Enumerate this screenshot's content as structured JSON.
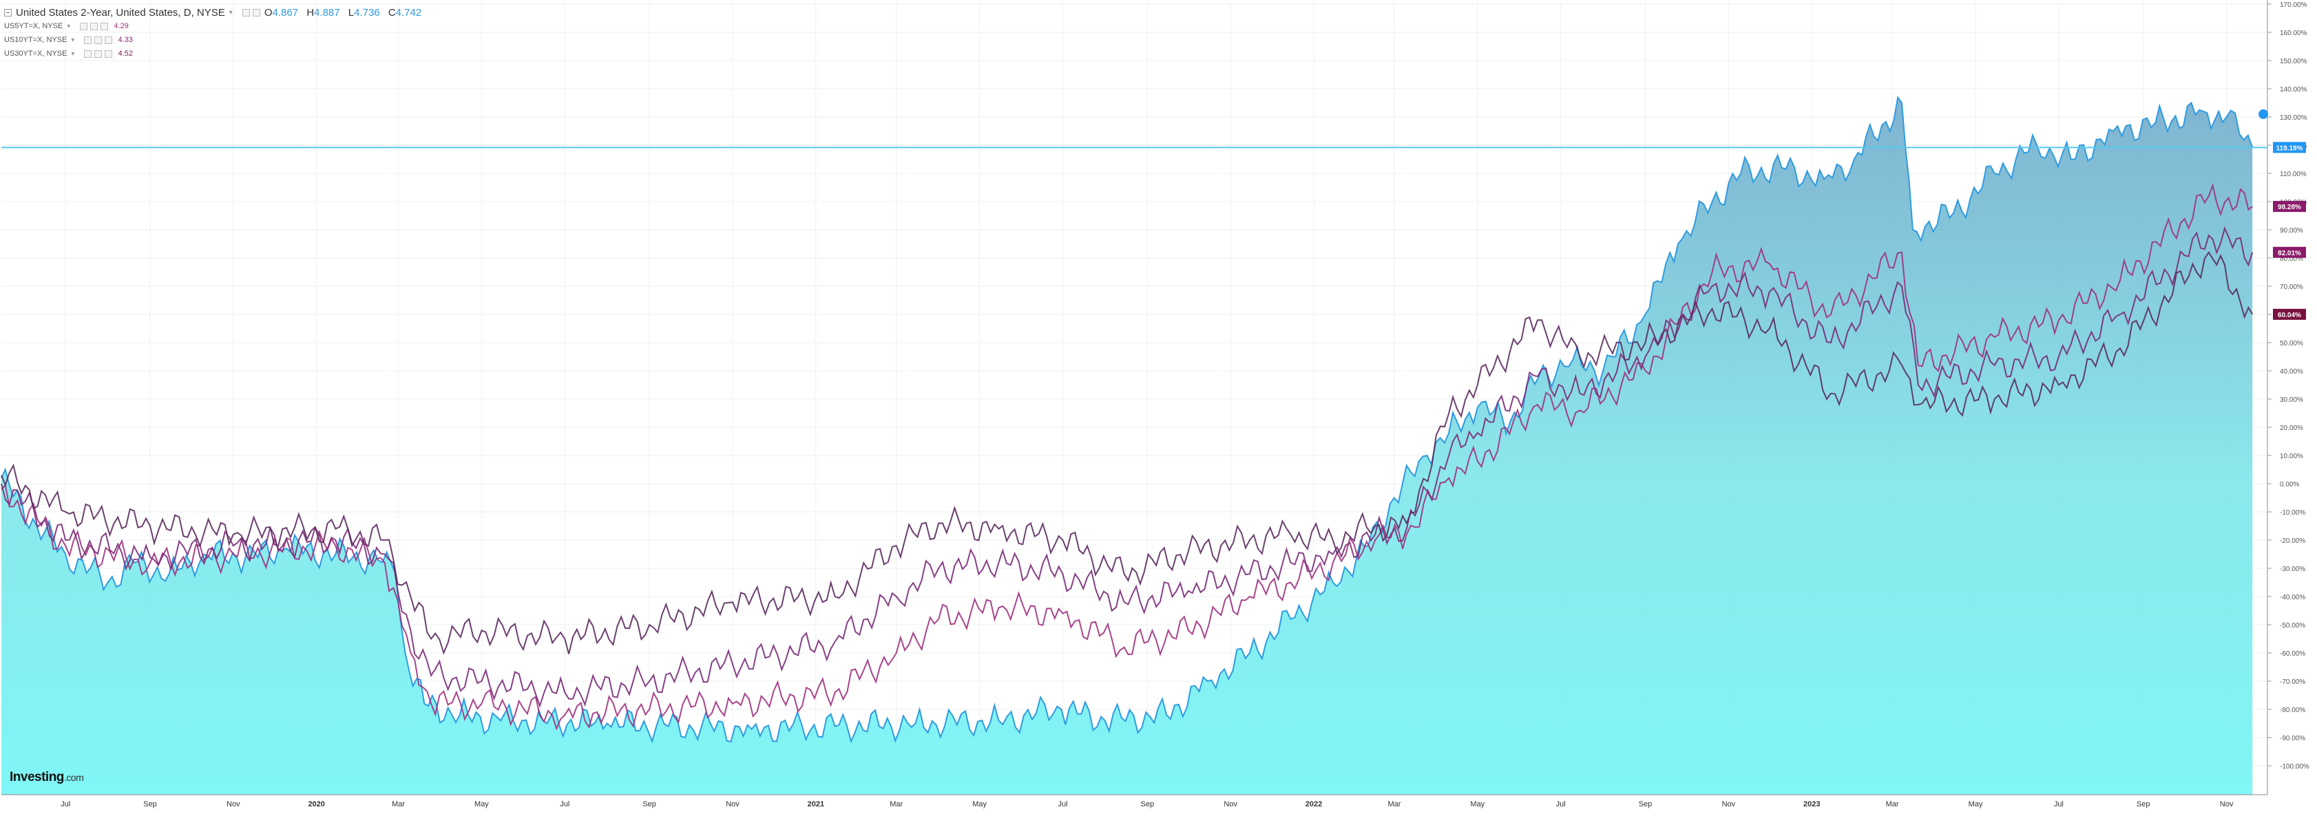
{
  "legend": {
    "main": {
      "title": "United States 2-Year, United States, D, NYSE",
      "open_key": "O",
      "open": "4.867",
      "high_key": "H",
      "high": "4.887",
      "low_key": "L",
      "low": "4.736",
      "close_key": "C",
      "close": "4.742"
    },
    "compare": [
      {
        "label": "US5YT=X, NYSE",
        "value": "4.29",
        "color": "#a0307e"
      },
      {
        "label": "US10YT=X, NYSE",
        "value": "4.33",
        "color": "#8a2471"
      },
      {
        "label": "US30YT=X, NYSE",
        "value": "4.52",
        "color": "#7d1a55"
      }
    ]
  },
  "watermark": {
    "brand": "Investing",
    "suffix": ".com"
  },
  "price_badges": [
    {
      "text": "119.19%",
      "color": "#2196f3"
    },
    {
      "text": "98.28%",
      "color": "#8b1a6a"
    },
    {
      "text": "82.01%",
      "color": "#8b1a6a"
    },
    {
      "text": "60.04%",
      "color": "#7a1040"
    }
  ],
  "chart_data": {
    "type": "area",
    "percent_scale": true,
    "grid": true,
    "x_ticks": [
      "Jul",
      "Sep",
      "Nov",
      "2020",
      "Mar",
      "May",
      "Jul",
      "Sep",
      "Nov",
      "2021",
      "Mar",
      "May",
      "Jul",
      "Sep",
      "Nov",
      "2022",
      "Mar",
      "May",
      "Jul",
      "Sep",
      "Nov",
      "2023",
      "Mar",
      "May",
      "Jul",
      "Sep",
      "Nov"
    ],
    "y_ticks": [
      "170.00%",
      "160.00%",
      "150.00%",
      "140.00%",
      "130.00%",
      "120.00%",
      "110.00%",
      "100.00%",
      "90.00%",
      "80.00%",
      "70.00%",
      "60.00%",
      "50.00%",
      "40.00%",
      "30.00%",
      "20.00%",
      "10.00%",
      "0.00%",
      "-10.00%",
      "-20.00%",
      "-30.00%",
      "-40.00%",
      "-50.00%",
      "-60.00%",
      "-70.00%",
      "-80.00%",
      "-90.00%",
      "-100.00%"
    ],
    "ylim": [
      -110,
      171
    ],
    "xlim": [
      "2019-05-15",
      "2023-12-01"
    ],
    "horizontal_line": 119.19,
    "series": [
      {
        "name": "United States 2-Year",
        "style": "area",
        "x": [
          "2019-05-15",
          "2019-06-10",
          "2019-07-01",
          "2019-08-01",
          "2019-08-20",
          "2019-09-15",
          "2019-10-10",
          "2019-11-10",
          "2019-12-10",
          "2020-01-15",
          "2020-02-15",
          "2020-02-28",
          "2020-03-06",
          "2020-03-20",
          "2020-04-15",
          "2020-05-15",
          "2020-06-15",
          "2020-08-01",
          "2020-09-15",
          "2020-11-15",
          "2021-01-15",
          "2021-03-15",
          "2021-05-15",
          "2021-06-30",
          "2021-08-01",
          "2021-09-15",
          "2021-10-15",
          "2021-11-15",
          "2021-12-15",
          "2022-01-15",
          "2022-02-10",
          "2022-03-01",
          "2022-03-25",
          "2022-04-10",
          "2022-05-01",
          "2022-05-25",
          "2022-06-15",
          "2022-07-10",
          "2022-08-01",
          "2022-09-01",
          "2022-09-25",
          "2022-10-20",
          "2022-11-10",
          "2022-12-10",
          "2023-01-10",
          "2023-02-01",
          "2023-03-08",
          "2023-03-16",
          "2023-04-15",
          "2023-05-15",
          "2023-06-15",
          "2023-07-10",
          "2023-08-10",
          "2023-09-10",
          "2023-10-15",
          "2023-11-01",
          "2023-11-20"
        ],
        "values": [
          2,
          -15,
          -25,
          -35,
          -28,
          -32,
          -25,
          -26,
          -23,
          -25,
          -27,
          -32,
          -60,
          -78,
          -82,
          -84,
          -84,
          -85,
          -86,
          -87,
          -86,
          -85,
          -84,
          -80,
          -84,
          -82,
          -70,
          -60,
          -48,
          -35,
          -22,
          -5,
          10,
          18,
          27,
          22,
          38,
          44,
          40,
          60,
          85,
          100,
          110,
          112,
          108,
          115,
          135,
          90,
          96,
          110,
          120,
          115,
          125,
          128,
          132,
          130,
          119.19
        ]
      },
      {
        "name": "US5YT=X",
        "style": "line",
        "x": [
          "2019-05-15",
          "2019-07-01",
          "2019-09-01",
          "2019-11-01",
          "2020-01-15",
          "2020-02-20",
          "2020-03-10",
          "2020-03-25",
          "2020-05-01",
          "2020-07-01",
          "2020-09-01",
          "2020-11-01",
          "2021-01-15",
          "2021-03-01",
          "2021-04-01",
          "2021-05-15",
          "2021-07-01",
          "2021-08-15",
          "2021-10-01",
          "2021-11-15",
          "2021-12-15",
          "2022-01-15",
          "2022-02-15",
          "2022-03-10",
          "2022-04-10",
          "2022-05-01",
          "2022-06-14",
          "2022-07-15",
          "2022-09-01",
          "2022-10-20",
          "2022-12-01",
          "2023-01-15",
          "2023-03-08",
          "2023-03-20",
          "2023-05-15",
          "2023-07-01",
          "2023-08-15",
          "2023-10-19",
          "2023-11-20"
        ],
        "values": [
          -2,
          -22,
          -28,
          -25,
          -22,
          -28,
          -60,
          -78,
          -78,
          -82,
          -80,
          -78,
          -74,
          -60,
          -48,
          -44,
          -46,
          -58,
          -52,
          -40,
          -35,
          -28,
          -20,
          -18,
          2,
          8,
          28,
          26,
          40,
          75,
          78,
          60,
          82,
          42,
          52,
          58,
          72,
          102,
          98.28
        ]
      },
      {
        "name": "US10YT=X",
        "style": "line",
        "x": [
          "2019-05-15",
          "2019-07-01",
          "2019-09-01",
          "2019-11-01",
          "2020-01-15",
          "2020-02-20",
          "2020-03-10",
          "2020-03-25",
          "2020-05-01",
          "2020-07-01",
          "2020-09-01",
          "2020-11-01",
          "2021-01-15",
          "2021-03-01",
          "2021-04-01",
          "2021-05-15",
          "2021-07-01",
          "2021-08-15",
          "2021-10-01",
          "2021-11-15",
          "2021-12-15",
          "2022-01-15",
          "2022-02-15",
          "2022-03-10",
          "2022-04-10",
          "2022-05-01",
          "2022-06-14",
          "2022-07-15",
          "2022-09-01",
          "2022-10-20",
          "2022-12-01",
          "2023-01-15",
          "2023-03-08",
          "2023-03-20",
          "2023-05-15",
          "2023-07-01",
          "2023-08-15",
          "2023-10-19",
          "2023-11-20"
        ],
        "values": [
          0,
          -20,
          -26,
          -22,
          -20,
          -25,
          -52,
          -68,
          -70,
          -74,
          -70,
          -64,
          -56,
          -40,
          -30,
          -28,
          -32,
          -42,
          -38,
          -32,
          -28,
          -25,
          -18,
          -16,
          10,
          18,
          38,
          32,
          45,
          70,
          68,
          50,
          70,
          35,
          42,
          45,
          60,
          88,
          82.01
        ]
      },
      {
        "name": "US30YT=X",
        "style": "line",
        "x": [
          "2019-05-15",
          "2019-07-01",
          "2019-09-01",
          "2019-11-01",
          "2020-01-15",
          "2020-02-20",
          "2020-03-10",
          "2020-03-25",
          "2020-05-01",
          "2020-07-01",
          "2020-09-01",
          "2020-11-01",
          "2021-01-15",
          "2021-03-01",
          "2021-04-01",
          "2021-05-15",
          "2021-07-01",
          "2021-08-15",
          "2021-10-01",
          "2021-11-15",
          "2021-12-15",
          "2022-01-15",
          "2022-02-15",
          "2022-03-10",
          "2022-04-10",
          "2022-05-01",
          "2022-06-14",
          "2022-07-15",
          "2022-09-01",
          "2022-10-20",
          "2022-12-01",
          "2023-01-15",
          "2023-03-08",
          "2023-03-20",
          "2023-05-15",
          "2023-07-01",
          "2023-08-15",
          "2023-10-19",
          "2023-11-20"
        ],
        "values": [
          3,
          -10,
          -15,
          -18,
          -16,
          -20,
          -40,
          -55,
          -52,
          -55,
          -50,
          -42,
          -40,
          -22,
          -14,
          -16,
          -20,
          -32,
          -24,
          -20,
          -18,
          -20,
          -15,
          -14,
          25,
          35,
          58,
          45,
          50,
          62,
          55,
          32,
          42,
          28,
          30,
          35,
          48,
          82,
          60.04
        ]
      }
    ]
  }
}
